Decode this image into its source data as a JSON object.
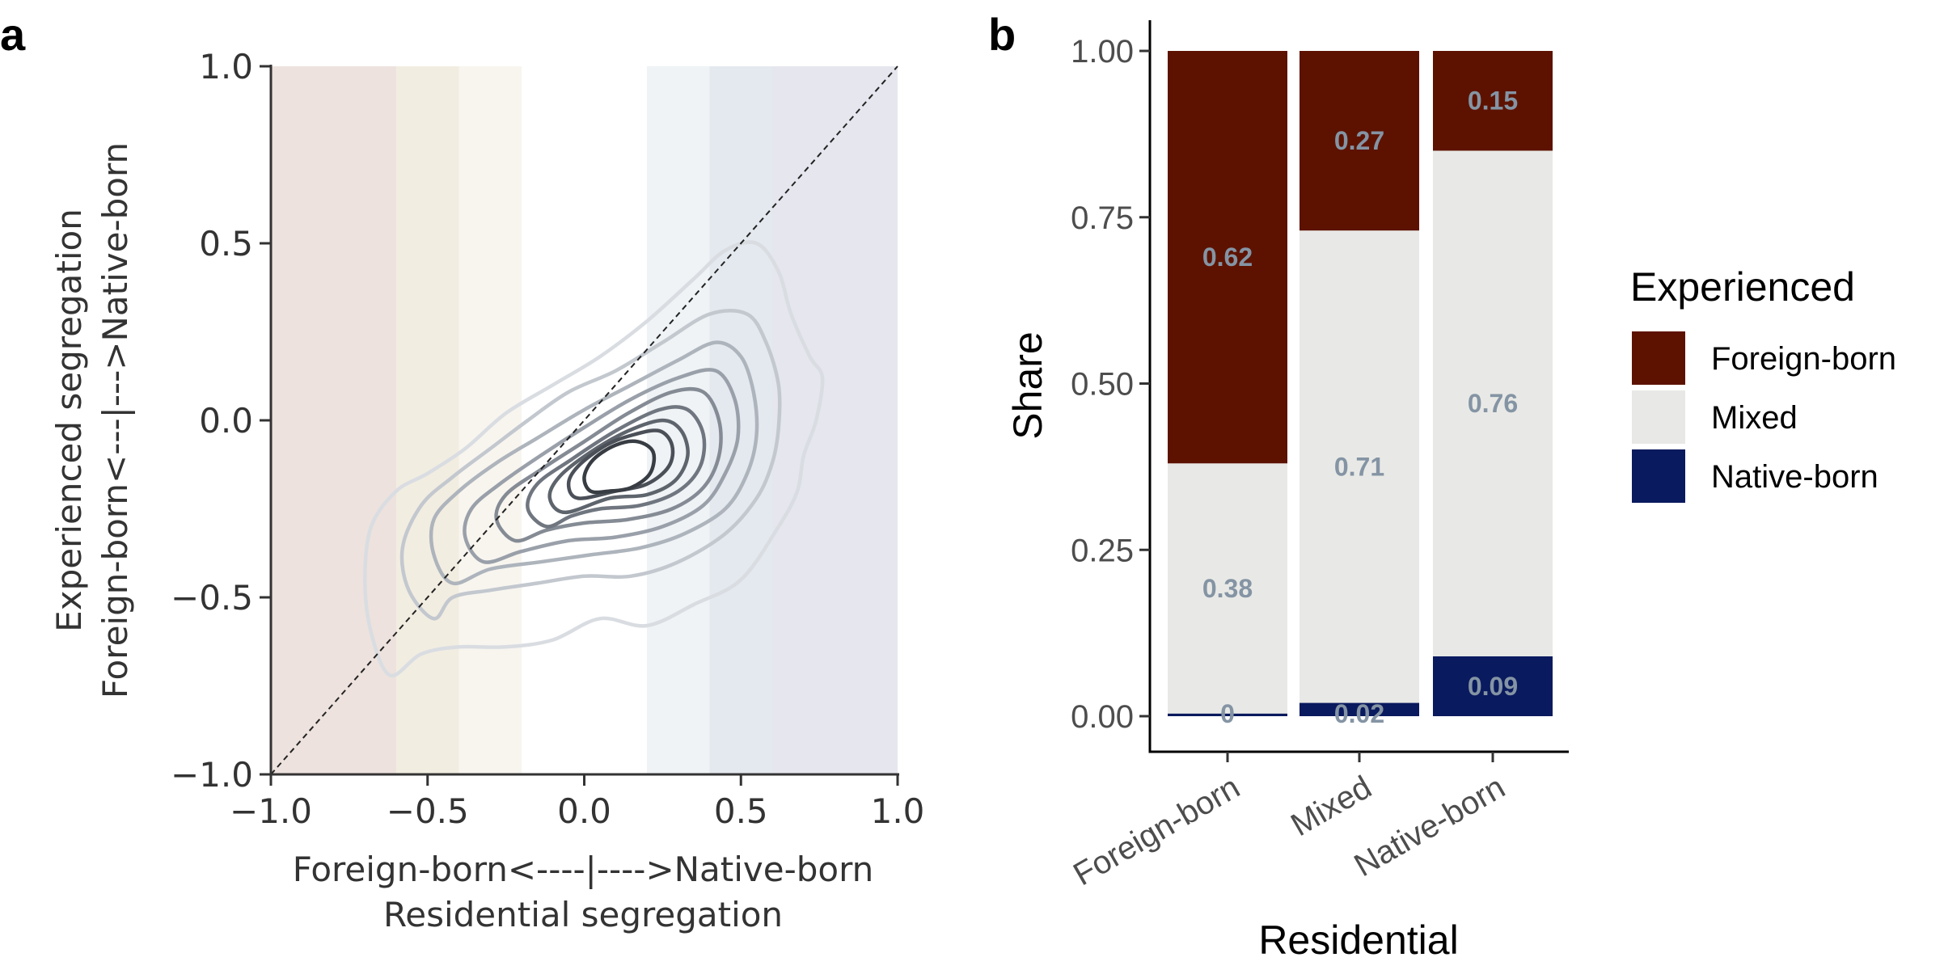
{
  "chart_data": [
    {
      "panel": "a",
      "type": "contour",
      "xlabel_line1": "Foreign-born<----|---->Native-born",
      "xlabel_line2": "Residential segregation",
      "ylabel_line1": "Experienced segregation",
      "ylabel_line2": "Foreign-born<---|--->Native-born",
      "xlim": [
        -1.0,
        1.0
      ],
      "ylim": [
        -1.0,
        1.0
      ],
      "xticks": [
        "−1.0",
        "−0.5",
        "0.0",
        "0.5",
        "1.0"
      ],
      "yticks": [
        "−1.0",
        "−0.5",
        "0.0",
        "0.5",
        "1.0"
      ],
      "reference_line": "y = x (dashed)",
      "background_bands": [
        {
          "x": [
            -1.0,
            -0.6
          ],
          "color": "#ede2dd"
        },
        {
          "x": [
            -0.6,
            -0.4
          ],
          "color": "#f2ede1"
        },
        {
          "x": [
            -0.4,
            -0.2
          ],
          "color": "#f8f5ef"
        },
        {
          "x": [
            -0.2,
            0.2
          ],
          "color": "#ffffff"
        },
        {
          "x": [
            0.2,
            0.4
          ],
          "color": "#eff3f6"
        },
        {
          "x": [
            0.4,
            0.6
          ],
          "color": "#e4e9ef"
        },
        {
          "x": [
            0.6,
            1.0
          ],
          "color": "#e5e6ee"
        }
      ],
      "contours": [
        {
          "level": 1,
          "color": "#d9dde2",
          "points": [
            [
              -0.62,
              -0.72
            ],
            [
              -0.68,
              -0.6
            ],
            [
              -0.7,
              -0.45
            ],
            [
              -0.68,
              -0.3
            ],
            [
              -0.6,
              -0.2
            ],
            [
              -0.5,
              -0.15
            ],
            [
              -0.38,
              -0.08
            ],
            [
              -0.25,
              0.02
            ],
            [
              -0.1,
              0.1
            ],
            [
              0.05,
              0.18
            ],
            [
              0.2,
              0.28
            ],
            [
              0.35,
              0.4
            ],
            [
              0.45,
              0.48
            ],
            [
              0.55,
              0.5
            ],
            [
              0.62,
              0.42
            ],
            [
              0.66,
              0.3
            ],
            [
              0.72,
              0.18
            ],
            [
              0.76,
              0.12
            ],
            [
              0.74,
              0.0
            ],
            [
              0.7,
              -0.1
            ],
            [
              0.68,
              -0.2
            ],
            [
              0.62,
              -0.3
            ],
            [
              0.5,
              -0.45
            ],
            [
              0.35,
              -0.52
            ],
            [
              0.2,
              -0.58
            ],
            [
              0.05,
              -0.56
            ],
            [
              -0.1,
              -0.62
            ],
            [
              -0.25,
              -0.64
            ],
            [
              -0.4,
              -0.64
            ],
            [
              -0.52,
              -0.66
            ]
          ]
        },
        {
          "level": 2,
          "color": "#c3c8cf",
          "points": [
            [
              -0.48,
              -0.56
            ],
            [
              -0.56,
              -0.48
            ],
            [
              -0.58,
              -0.36
            ],
            [
              -0.52,
              -0.24
            ],
            [
              -0.42,
              -0.16
            ],
            [
              -0.3,
              -0.08
            ],
            [
              -0.18,
              0.0
            ],
            [
              -0.05,
              0.08
            ],
            [
              0.1,
              0.14
            ],
            [
              0.25,
              0.22
            ],
            [
              0.4,
              0.3
            ],
            [
              0.52,
              0.3
            ],
            [
              0.58,
              0.22
            ],
            [
              0.62,
              0.1
            ],
            [
              0.62,
              -0.02
            ],
            [
              0.6,
              -0.12
            ],
            [
              0.55,
              -0.22
            ],
            [
              0.45,
              -0.32
            ],
            [
              0.3,
              -0.4
            ],
            [
              0.15,
              -0.44
            ],
            [
              0.0,
              -0.44
            ],
            [
              -0.15,
              -0.46
            ],
            [
              -0.3,
              -0.48
            ],
            [
              -0.42,
              -0.5
            ]
          ]
        },
        {
          "level": 3,
          "color": "#aeb4bc",
          "points": [
            [
              -0.42,
              -0.46
            ],
            [
              -0.48,
              -0.38
            ],
            [
              -0.48,
              -0.28
            ],
            [
              -0.4,
              -0.2
            ],
            [
              -0.28,
              -0.12
            ],
            [
              -0.15,
              -0.05
            ],
            [
              0.0,
              0.03
            ],
            [
              0.15,
              0.1
            ],
            [
              0.3,
              0.17
            ],
            [
              0.42,
              0.22
            ],
            [
              0.5,
              0.18
            ],
            [
              0.54,
              0.08
            ],
            [
              0.55,
              -0.04
            ],
            [
              0.52,
              -0.15
            ],
            [
              0.45,
              -0.25
            ],
            [
              0.32,
              -0.32
            ],
            [
              0.18,
              -0.36
            ],
            [
              0.02,
              -0.38
            ],
            [
              -0.14,
              -0.4
            ],
            [
              -0.3,
              -0.42
            ]
          ]
        },
        {
          "level": 4,
          "color": "#9aa0a9",
          "points": [
            [
              -0.32,
              -0.4
            ],
            [
              -0.38,
              -0.33
            ],
            [
              -0.36,
              -0.25
            ],
            [
              -0.27,
              -0.18
            ],
            [
              -0.14,
              -0.1
            ],
            [
              0.0,
              -0.02
            ],
            [
              0.15,
              0.06
            ],
            [
              0.3,
              0.12
            ],
            [
              0.42,
              0.14
            ],
            [
              0.48,
              0.06
            ],
            [
              0.49,
              -0.05
            ],
            [
              0.45,
              -0.15
            ],
            [
              0.38,
              -0.24
            ],
            [
              0.25,
              -0.3
            ],
            [
              0.1,
              -0.33
            ],
            [
              -0.05,
              -0.34
            ],
            [
              -0.2,
              -0.37
            ]
          ]
        },
        {
          "level": 5,
          "color": "#858b94",
          "points": [
            [
              -0.22,
              -0.34
            ],
            [
              -0.28,
              -0.28
            ],
            [
              -0.25,
              -0.21
            ],
            [
              -0.14,
              -0.14
            ],
            [
              0.0,
              -0.06
            ],
            [
              0.14,
              0.02
            ],
            [
              0.28,
              0.08
            ],
            [
              0.38,
              0.08
            ],
            [
              0.43,
              0.0
            ],
            [
              0.43,
              -0.1
            ],
            [
              0.38,
              -0.19
            ],
            [
              0.28,
              -0.25
            ],
            [
              0.14,
              -0.28
            ],
            [
              0.0,
              -0.29
            ],
            [
              -0.12,
              -0.31
            ]
          ]
        },
        {
          "level": 6,
          "color": "#70767f",
          "points": [
            [
              -0.12,
              -0.3
            ],
            [
              -0.18,
              -0.25
            ],
            [
              -0.15,
              -0.18
            ],
            [
              -0.04,
              -0.11
            ],
            [
              0.1,
              -0.03
            ],
            [
              0.24,
              0.03
            ],
            [
              0.33,
              0.03
            ],
            [
              0.38,
              -0.04
            ],
            [
              0.37,
              -0.13
            ],
            [
              0.3,
              -0.2
            ],
            [
              0.18,
              -0.24
            ],
            [
              0.05,
              -0.25
            ],
            [
              -0.04,
              -0.27
            ]
          ]
        },
        {
          "level": 7,
          "color": "#5e646c",
          "points": [
            [
              -0.06,
              -0.26
            ],
            [
              -0.11,
              -0.22
            ],
            [
              -0.08,
              -0.16
            ],
            [
              0.02,
              -0.09
            ],
            [
              0.14,
              -0.03
            ],
            [
              0.25,
              0.0
            ],
            [
              0.31,
              -0.03
            ],
            [
              0.33,
              -0.1
            ],
            [
              0.29,
              -0.17
            ],
            [
              0.2,
              -0.21
            ],
            [
              0.08,
              -0.22
            ]
          ]
        },
        {
          "level": 8,
          "color": "#4b5058",
          "points": [
            [
              -0.02,
              -0.22
            ],
            [
              -0.05,
              -0.18
            ],
            [
              -0.02,
              -0.13
            ],
            [
              0.07,
              -0.07
            ],
            [
              0.16,
              -0.04
            ],
            [
              0.24,
              -0.03
            ],
            [
              0.28,
              -0.07
            ],
            [
              0.27,
              -0.13
            ],
            [
              0.2,
              -0.18
            ],
            [
              0.1,
              -0.2
            ]
          ]
        },
        {
          "level": 9,
          "color": "#383c43",
          "points": [
            [
              0.02,
              -0.2
            ],
            [
              0.0,
              -0.16
            ],
            [
              0.03,
              -0.11
            ],
            [
              0.1,
              -0.07
            ],
            [
              0.17,
              -0.06
            ],
            [
              0.22,
              -0.09
            ],
            [
              0.21,
              -0.15
            ],
            [
              0.15,
              -0.19
            ],
            [
              0.08,
              -0.2
            ]
          ]
        }
      ]
    },
    {
      "panel": "b",
      "type": "stacked-bar",
      "categories": [
        "Foreign-born",
        "Mixed",
        "Native-born"
      ],
      "xlabel": "Residential",
      "ylabel": "Share",
      "ylim": [
        0,
        1
      ],
      "yticks": [
        "0.00",
        "0.25",
        "0.50",
        "0.75",
        "1.00"
      ],
      "legend_title": "Experienced",
      "legend_position": "right",
      "series": [
        {
          "name": "Native-born",
          "color": "#0a1a5e",
          "values": [
            0.004,
            0.02,
            0.09
          ],
          "labels": [
            "0",
            "0.02",
            "0.09"
          ]
        },
        {
          "name": "Mixed",
          "color": "#e8e9e6",
          "values": [
            0.376,
            0.71,
            0.76
          ],
          "labels": [
            "0.38",
            "0.71",
            "0.76"
          ]
        },
        {
          "name": "Foreign-born",
          "color": "#5d1200",
          "values": [
            0.62,
            0.27,
            0.15
          ],
          "labels": [
            "0.62",
            "0.27",
            "0.15"
          ]
        }
      ],
      "legend_order": [
        "Foreign-born",
        "Mixed",
        "Native-born"
      ]
    }
  ],
  "panel_letters": {
    "a": "a",
    "b": "b"
  }
}
